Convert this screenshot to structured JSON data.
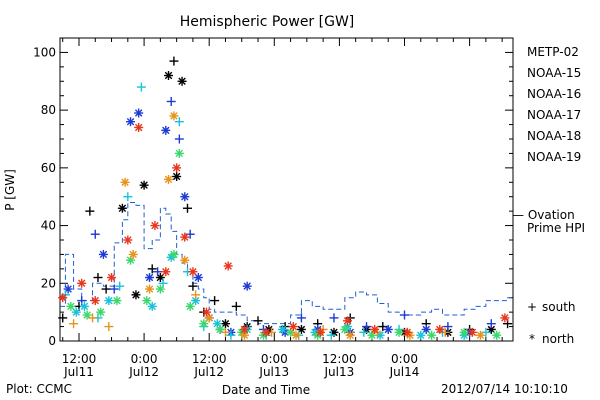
{
  "chart_data": {
    "type": "scatter",
    "title": "Hemispheric Power [GW]",
    "ylabel": "P [GW]",
    "xlabel": "Date and Time",
    "ylim": [
      0,
      105
    ],
    "xlim": [
      "2012-07-11T08:30",
      "2012-07-14T20:00"
    ],
    "y_ticks": [
      0,
      20,
      40,
      60,
      80,
      100
    ],
    "x_ticks": [
      {
        "time": "2012-07-11T12:00",
        "label_top": "12:00",
        "label_bottom": "Jul11"
      },
      {
        "time": "2012-07-12T00:00",
        "label_top": "0:00",
        "label_bottom": "Jul12"
      },
      {
        "time": "2012-07-12T12:00",
        "label_top": "12:00",
        "label_bottom": "Jul12"
      },
      {
        "time": "2012-07-13T00:00",
        "label_top": "0:00",
        "label_bottom": "Jul13"
      },
      {
        "time": "2012-07-13T12:00",
        "label_top": "12:00",
        "label_bottom": "Jul13"
      },
      {
        "time": "2012-07-14T00:00",
        "label_top": "0:00",
        "label_bottom": "Jul14"
      }
    ],
    "legend_position": "right",
    "marker_legend": [
      {
        "symbol": "+",
        "label": "south"
      },
      {
        "symbol": "*",
        "label": "north"
      }
    ],
    "reference_line": {
      "name": "Ovation Prime HPI",
      "label_line1": "— Ovation",
      "label_line2": "Prime HPI",
      "color": "#1f5fd6",
      "points": [
        [
          "2012-07-11T08:30",
          12
        ],
        [
          "2012-07-11T09:30",
          30
        ],
        [
          "2012-07-11T11:00",
          18
        ],
        [
          "2012-07-11T12:30",
          14
        ],
        [
          "2012-07-11T14:30",
          20
        ],
        [
          "2012-07-11T16:30",
          19
        ],
        [
          "2012-07-11T18:30",
          34
        ],
        [
          "2012-07-11T20:00",
          42
        ],
        [
          "2012-07-11T21:00",
          48
        ],
        [
          "2012-07-11T22:30",
          47
        ],
        [
          "2012-07-12T00:00",
          32
        ],
        [
          "2012-07-12T01:30",
          35
        ],
        [
          "2012-07-12T03:00",
          46
        ],
        [
          "2012-07-12T04:00",
          44
        ],
        [
          "2012-07-12T05:00",
          38
        ],
        [
          "2012-07-12T06:00",
          30
        ],
        [
          "2012-07-12T07:00",
          27
        ],
        [
          "2012-07-12T08:00",
          24
        ],
        [
          "2012-07-12T09:00",
          20
        ],
        [
          "2012-07-12T10:00",
          18
        ],
        [
          "2012-07-12T11:00",
          15
        ],
        [
          "2012-07-12T12:00",
          11
        ],
        [
          "2012-07-12T13:00",
          10
        ],
        [
          "2012-07-12T15:00",
          10
        ],
        [
          "2012-07-12T17:00",
          9
        ],
        [
          "2012-07-12T19:00",
          7
        ],
        [
          "2012-07-12T21:00",
          6
        ],
        [
          "2012-07-12T23:00",
          6
        ],
        [
          "2012-07-13T01:00",
          6
        ],
        [
          "2012-07-13T03:00",
          9
        ],
        [
          "2012-07-13T05:00",
          14
        ],
        [
          "2012-07-13T07:00",
          12
        ],
        [
          "2012-07-13T09:00",
          11
        ],
        [
          "2012-07-13T11:00",
          11
        ],
        [
          "2012-07-13T13:00",
          15
        ],
        [
          "2012-07-13T15:00",
          17
        ],
        [
          "2012-07-13T17:00",
          16
        ],
        [
          "2012-07-13T19:00",
          13
        ],
        [
          "2012-07-13T21:00",
          10
        ],
        [
          "2012-07-13T23:00",
          9
        ],
        [
          "2012-07-14T01:00",
          9
        ],
        [
          "2012-07-14T03:00",
          10
        ],
        [
          "2012-07-14T05:00",
          11
        ],
        [
          "2012-07-14T07:00",
          9
        ],
        [
          "2012-07-14T09:00",
          9
        ],
        [
          "2012-07-14T11:00",
          11
        ],
        [
          "2012-07-14T13:00",
          12
        ],
        [
          "2012-07-14T15:00",
          14
        ],
        [
          "2012-07-14T17:00",
          14
        ],
        [
          "2012-07-14T19:00",
          15
        ]
      ]
    },
    "series": [
      {
        "name": "METP-02",
        "color": "#000000",
        "points": [
          [
            "2012-07-11T09:00",
            8,
            "+"
          ],
          [
            "2012-07-11T12:00",
            12,
            "+"
          ],
          [
            "2012-07-11T14:00",
            45,
            "+"
          ],
          [
            "2012-07-11T15:30",
            22,
            "+"
          ],
          [
            "2012-07-11T17:00",
            18,
            "+"
          ],
          [
            "2012-07-11T20:00",
            46,
            "*"
          ],
          [
            "2012-07-11T22:30",
            16,
            "*"
          ],
          [
            "2012-07-12T00:00",
            54,
            "*"
          ],
          [
            "2012-07-12T01:30",
            25,
            "+"
          ],
          [
            "2012-07-12T03:00",
            22,
            "*"
          ],
          [
            "2012-07-12T04:30",
            92,
            "*"
          ],
          [
            "2012-07-12T05:30",
            97,
            "+"
          ],
          [
            "2012-07-12T07:00",
            90,
            "*"
          ],
          [
            "2012-07-12T06:00",
            57,
            "*"
          ],
          [
            "2012-07-12T08:00",
            46,
            "+"
          ],
          [
            "2012-07-12T09:00",
            19,
            "+"
          ],
          [
            "2012-07-12T11:00",
            10,
            "+"
          ],
          [
            "2012-07-12T13:00",
            14,
            "+"
          ],
          [
            "2012-07-12T15:00",
            6,
            "*"
          ],
          [
            "2012-07-12T17:00",
            12,
            "+"
          ],
          [
            "2012-07-12T19:00",
            5,
            "*"
          ],
          [
            "2012-07-12T21:00",
            7,
            "+"
          ],
          [
            "2012-07-12T23:00",
            4,
            "*"
          ],
          [
            "2012-07-13T02:00",
            5,
            "+"
          ],
          [
            "2012-07-13T05:00",
            4,
            "*"
          ],
          [
            "2012-07-13T08:00",
            6,
            "+"
          ],
          [
            "2012-07-13T11:00",
            3,
            "*"
          ],
          [
            "2012-07-13T14:00",
            8,
            "+"
          ],
          [
            "2012-07-13T17:00",
            4,
            "*"
          ],
          [
            "2012-07-13T20:00",
            5,
            "+"
          ],
          [
            "2012-07-14T00:00",
            3,
            "*"
          ],
          [
            "2012-07-14T04:00",
            6,
            "+"
          ],
          [
            "2012-07-14T08:00",
            3,
            "*"
          ],
          [
            "2012-07-14T12:00",
            4,
            "+"
          ],
          [
            "2012-07-14T16:00",
            4,
            "*"
          ],
          [
            "2012-07-14T19:00",
            6,
            "+"
          ]
        ]
      },
      {
        "name": "NOAA-15",
        "color": "#1c3ad6",
        "points": [
          [
            "2012-07-11T10:00",
            18,
            "*"
          ],
          [
            "2012-07-11T12:30",
            14,
            "+"
          ],
          [
            "2012-07-11T15:00",
            37,
            "+"
          ],
          [
            "2012-07-11T16:30",
            30,
            "*"
          ],
          [
            "2012-07-11T18:30",
            18,
            "+"
          ],
          [
            "2012-07-11T21:30",
            76,
            "*"
          ],
          [
            "2012-07-11T23:00",
            79,
            "*"
          ],
          [
            "2012-07-12T01:00",
            22,
            "*"
          ],
          [
            "2012-07-12T02:30",
            24,
            "+"
          ],
          [
            "2012-07-12T04:00",
            73,
            "*"
          ],
          [
            "2012-07-12T05:00",
            83,
            "+"
          ],
          [
            "2012-07-12T06:30",
            70,
            "+"
          ],
          [
            "2012-07-12T07:30",
            50,
            "*"
          ],
          [
            "2012-07-12T08:30",
            37,
            "+"
          ],
          [
            "2012-07-12T10:00",
            22,
            "*"
          ],
          [
            "2012-07-12T12:00",
            8,
            "*"
          ],
          [
            "2012-07-12T14:00",
            4,
            "+"
          ],
          [
            "2012-07-12T16:00",
            3,
            "*"
          ],
          [
            "2012-07-12T19:00",
            19,
            "*"
          ],
          [
            "2012-07-12T22:00",
            4,
            "+"
          ],
          [
            "2012-07-13T02:00",
            3,
            "*"
          ],
          [
            "2012-07-13T05:00",
            8,
            "+"
          ],
          [
            "2012-07-13T08:00",
            4,
            "*"
          ],
          [
            "2012-07-13T11:00",
            8,
            "+"
          ],
          [
            "2012-07-13T14:00",
            3,
            "*"
          ],
          [
            "2012-07-13T17:00",
            5,
            "+"
          ],
          [
            "2012-07-13T21:00",
            4,
            "*"
          ],
          [
            "2012-07-14T00:00",
            9,
            "+"
          ],
          [
            "2012-07-14T04:00",
            4,
            "*"
          ],
          [
            "2012-07-14T08:00",
            5,
            "+"
          ],
          [
            "2012-07-14T12:00",
            3,
            "*"
          ],
          [
            "2012-07-14T16:00",
            6,
            "+"
          ]
        ]
      },
      {
        "name": "NOAA-16",
        "color": "#19c2dc",
        "points": [
          [
            "2012-07-11T09:30",
            16,
            "+"
          ],
          [
            "2012-07-11T11:30",
            10,
            "*"
          ],
          [
            "2012-07-11T13:00",
            12,
            "*"
          ],
          [
            "2012-07-11T15:30",
            8,
            "+"
          ],
          [
            "2012-07-11T17:30",
            14,
            "*"
          ],
          [
            "2012-07-11T19:30",
            19,
            "+"
          ],
          [
            "2012-07-11T21:00",
            50,
            "+"
          ],
          [
            "2012-07-11T23:30",
            88,
            "+"
          ],
          [
            "2012-07-12T01:30",
            12,
            "*"
          ],
          [
            "2012-07-12T03:30",
            20,
            "+"
          ],
          [
            "2012-07-12T05:00",
            29,
            "*"
          ],
          [
            "2012-07-12T06:30",
            76,
            "+"
          ],
          [
            "2012-07-12T08:00",
            24,
            "+"
          ],
          [
            "2012-07-12T09:30",
            14,
            "*"
          ],
          [
            "2012-07-12T11:00",
            5,
            "+"
          ],
          [
            "2012-07-12T13:30",
            6,
            "*"
          ],
          [
            "2012-07-12T16:00",
            2,
            "+"
          ],
          [
            "2012-07-12T19:00",
            4,
            "*"
          ],
          [
            "2012-07-12T22:30",
            2,
            "+"
          ],
          [
            "2012-07-13T01:30",
            4,
            "*"
          ],
          [
            "2012-07-13T04:30",
            2,
            "+"
          ],
          [
            "2012-07-13T07:30",
            3,
            "*"
          ],
          [
            "2012-07-13T10:30",
            2,
            "+"
          ],
          [
            "2012-07-13T13:30",
            5,
            "*"
          ],
          [
            "2012-07-13T16:30",
            3,
            "+"
          ],
          [
            "2012-07-13T19:30",
            2,
            "*"
          ],
          [
            "2012-07-13T23:00",
            4,
            "+"
          ],
          [
            "2012-07-14T03:00",
            2,
            "*"
          ],
          [
            "2012-07-14T07:00",
            3,
            "+"
          ],
          [
            "2012-07-14T11:00",
            2,
            "*"
          ],
          [
            "2012-07-14T15:00",
            3,
            "+"
          ]
        ]
      },
      {
        "name": "NOAA-17",
        "color": "#3ad86a",
        "points": [
          [
            "2012-07-11T10:30",
            12,
            "*"
          ],
          [
            "2012-07-11T13:30",
            9,
            "*"
          ],
          [
            "2012-07-11T16:00",
            10,
            "*"
          ],
          [
            "2012-07-11T19:00",
            14,
            "*"
          ],
          [
            "2012-07-11T21:30",
            28,
            "*"
          ],
          [
            "2012-07-12T00:30",
            14,
            "*"
          ],
          [
            "2012-07-12T03:00",
            18,
            "*"
          ],
          [
            "2012-07-12T05:30",
            30,
            "*"
          ],
          [
            "2012-07-12T06:30",
            65,
            "*"
          ],
          [
            "2012-07-12T08:30",
            12,
            "*"
          ],
          [
            "2012-07-12T11:00",
            6,
            "*"
          ],
          [
            "2012-07-12T14:00",
            4,
            "*"
          ],
          [
            "2012-07-12T18:00",
            3,
            "*"
          ],
          [
            "2012-07-12T22:00",
            2,
            "*"
          ],
          [
            "2012-07-13T03:00",
            3,
            "*"
          ],
          [
            "2012-07-13T08:00",
            2,
            "*"
          ],
          [
            "2012-07-13T13:00",
            4,
            "*"
          ],
          [
            "2012-07-13T18:00",
            2,
            "*"
          ],
          [
            "2012-07-13T23:00",
            3,
            "*"
          ],
          [
            "2012-07-14T05:00",
            2,
            "*"
          ],
          [
            "2012-07-14T11:00",
            3,
            "*"
          ],
          [
            "2012-07-14T17:00",
            2,
            "*"
          ]
        ]
      },
      {
        "name": "NOAA-18",
        "color": "#e8931c",
        "points": [
          [
            "2012-07-11T11:00",
            6,
            "+"
          ],
          [
            "2012-07-11T14:30",
            8,
            "+"
          ],
          [
            "2012-07-11T17:30",
            5,
            "+"
          ],
          [
            "2012-07-11T20:30",
            55,
            "*"
          ],
          [
            "2012-07-11T22:00",
            30,
            "*"
          ],
          [
            "2012-07-12T01:00",
            18,
            "*"
          ],
          [
            "2012-07-12T04:30",
            56,
            "*"
          ],
          [
            "2012-07-12T05:30",
            78,
            "*"
          ],
          [
            "2012-07-12T07:30",
            28,
            "*"
          ],
          [
            "2012-07-12T09:30",
            16,
            "+"
          ],
          [
            "2012-07-12T12:00",
            8,
            "*"
          ],
          [
            "2012-07-12T15:00",
            3,
            "+"
          ],
          [
            "2012-07-12T18:30",
            2,
            "*"
          ],
          [
            "2012-07-12T23:30",
            3,
            "+"
          ],
          [
            "2012-07-13T04:00",
            2,
            "*"
          ],
          [
            "2012-07-13T09:00",
            4,
            "+"
          ],
          [
            "2012-07-13T14:00",
            2,
            "*"
          ],
          [
            "2012-07-13T19:00",
            3,
            "+"
          ],
          [
            "2012-07-14T01:00",
            2,
            "*"
          ],
          [
            "2012-07-14T07:30",
            3,
            "+"
          ],
          [
            "2012-07-14T14:00",
            2,
            "*"
          ]
        ]
      },
      {
        "name": "NOAA-19",
        "color": "#e8361c",
        "points": [
          [
            "2012-07-11T09:00",
            15,
            "*"
          ],
          [
            "2012-07-11T12:30",
            20,
            "*"
          ],
          [
            "2012-07-11T15:00",
            14,
            "*"
          ],
          [
            "2012-07-11T18:00",
            22,
            "*"
          ],
          [
            "2012-07-11T21:00",
            35,
            "*"
          ],
          [
            "2012-07-11T23:00",
            74,
            "*"
          ],
          [
            "2012-07-12T02:00",
            40,
            "*"
          ],
          [
            "2012-07-12T04:00",
            24,
            "*"
          ],
          [
            "2012-07-12T06:00",
            60,
            "*"
          ],
          [
            "2012-07-12T07:30",
            36,
            "*"
          ],
          [
            "2012-07-12T09:00",
            24,
            "*"
          ],
          [
            "2012-07-12T11:30",
            10,
            "*"
          ],
          [
            "2012-07-12T15:30",
            26,
            "*"
          ],
          [
            "2012-07-12T18:30",
            4,
            "*"
          ],
          [
            "2012-07-12T22:30",
            3,
            "*"
          ],
          [
            "2012-07-13T03:30",
            5,
            "*"
          ],
          [
            "2012-07-13T08:30",
            3,
            "*"
          ],
          [
            "2012-07-13T13:30",
            7,
            "*"
          ],
          [
            "2012-07-13T18:30",
            4,
            "*"
          ],
          [
            "2012-07-14T00:30",
            3,
            "*"
          ],
          [
            "2012-07-14T06:30",
            4,
            "*"
          ],
          [
            "2012-07-14T12:30",
            3,
            "*"
          ],
          [
            "2012-07-14T18:30",
            8,
            "*"
          ]
        ]
      }
    ],
    "footer_left": "Plot: CCMC",
    "footer_right": "2012/07/14 10:10:10"
  }
}
